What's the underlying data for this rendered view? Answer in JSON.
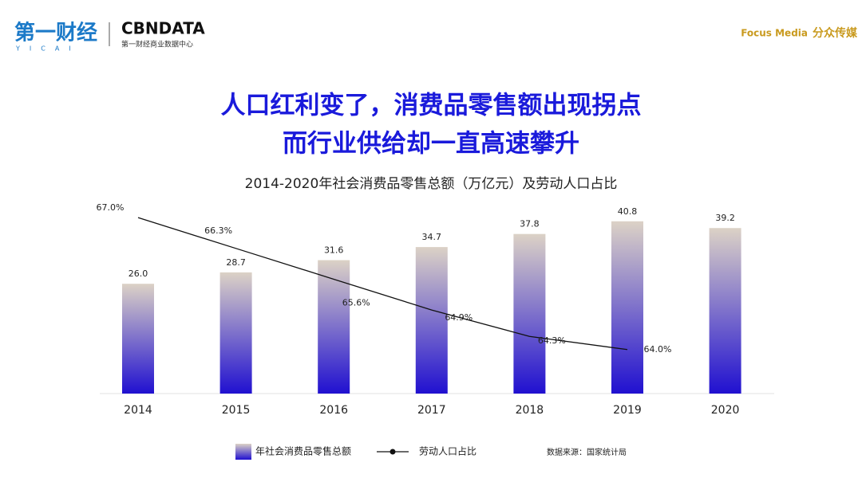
{
  "logos": {
    "yicai": "第一财经",
    "yicai_sub": "YICAI",
    "cbn": "CBNDATA",
    "cbn_sub": "第一财经商业数据中心",
    "focus": "Focus Media",
    "focus_cn": "分众传媒"
  },
  "headline": [
    "人口红利变了，消费品零售额出现拐点",
    "而行业供给却一直高速攀升"
  ],
  "chart_data": {
    "type": "combo",
    "title": "2014-2020年社会消费品零售总额（万亿元）及劳动人口占比",
    "categories": [
      "2014",
      "2015",
      "2016",
      "2017",
      "2018",
      "2019",
      "2020"
    ],
    "ylim": [
      0,
      50
    ],
    "y2lim": [
      63,
      67.8
    ],
    "series": [
      {
        "name": "年社会消费品零售总额",
        "type": "bar",
        "color": [
          "#dcd2c6",
          "#2010d0"
        ],
        "values": [
          26.0,
          28.7,
          31.6,
          34.7,
          37.8,
          40.8,
          39.2
        ],
        "value_labels": [
          "26.0",
          "28.7",
          "31.6",
          "34.7",
          "37.8",
          "40.8",
          "39.2"
        ]
      },
      {
        "name": "劳动人口占比",
        "type": "line",
        "axis": "y2",
        "color": "#111111",
        "values": [
          67.0,
          66.3,
          65.6,
          64.9,
          64.3,
          64.0,
          null
        ],
        "value_labels": [
          "67.0%",
          "66.3%",
          "65.6%",
          "64.9%",
          "64.3%",
          "64.0%",
          null
        ]
      }
    ],
    "source": "数据来源：国家统计局"
  }
}
